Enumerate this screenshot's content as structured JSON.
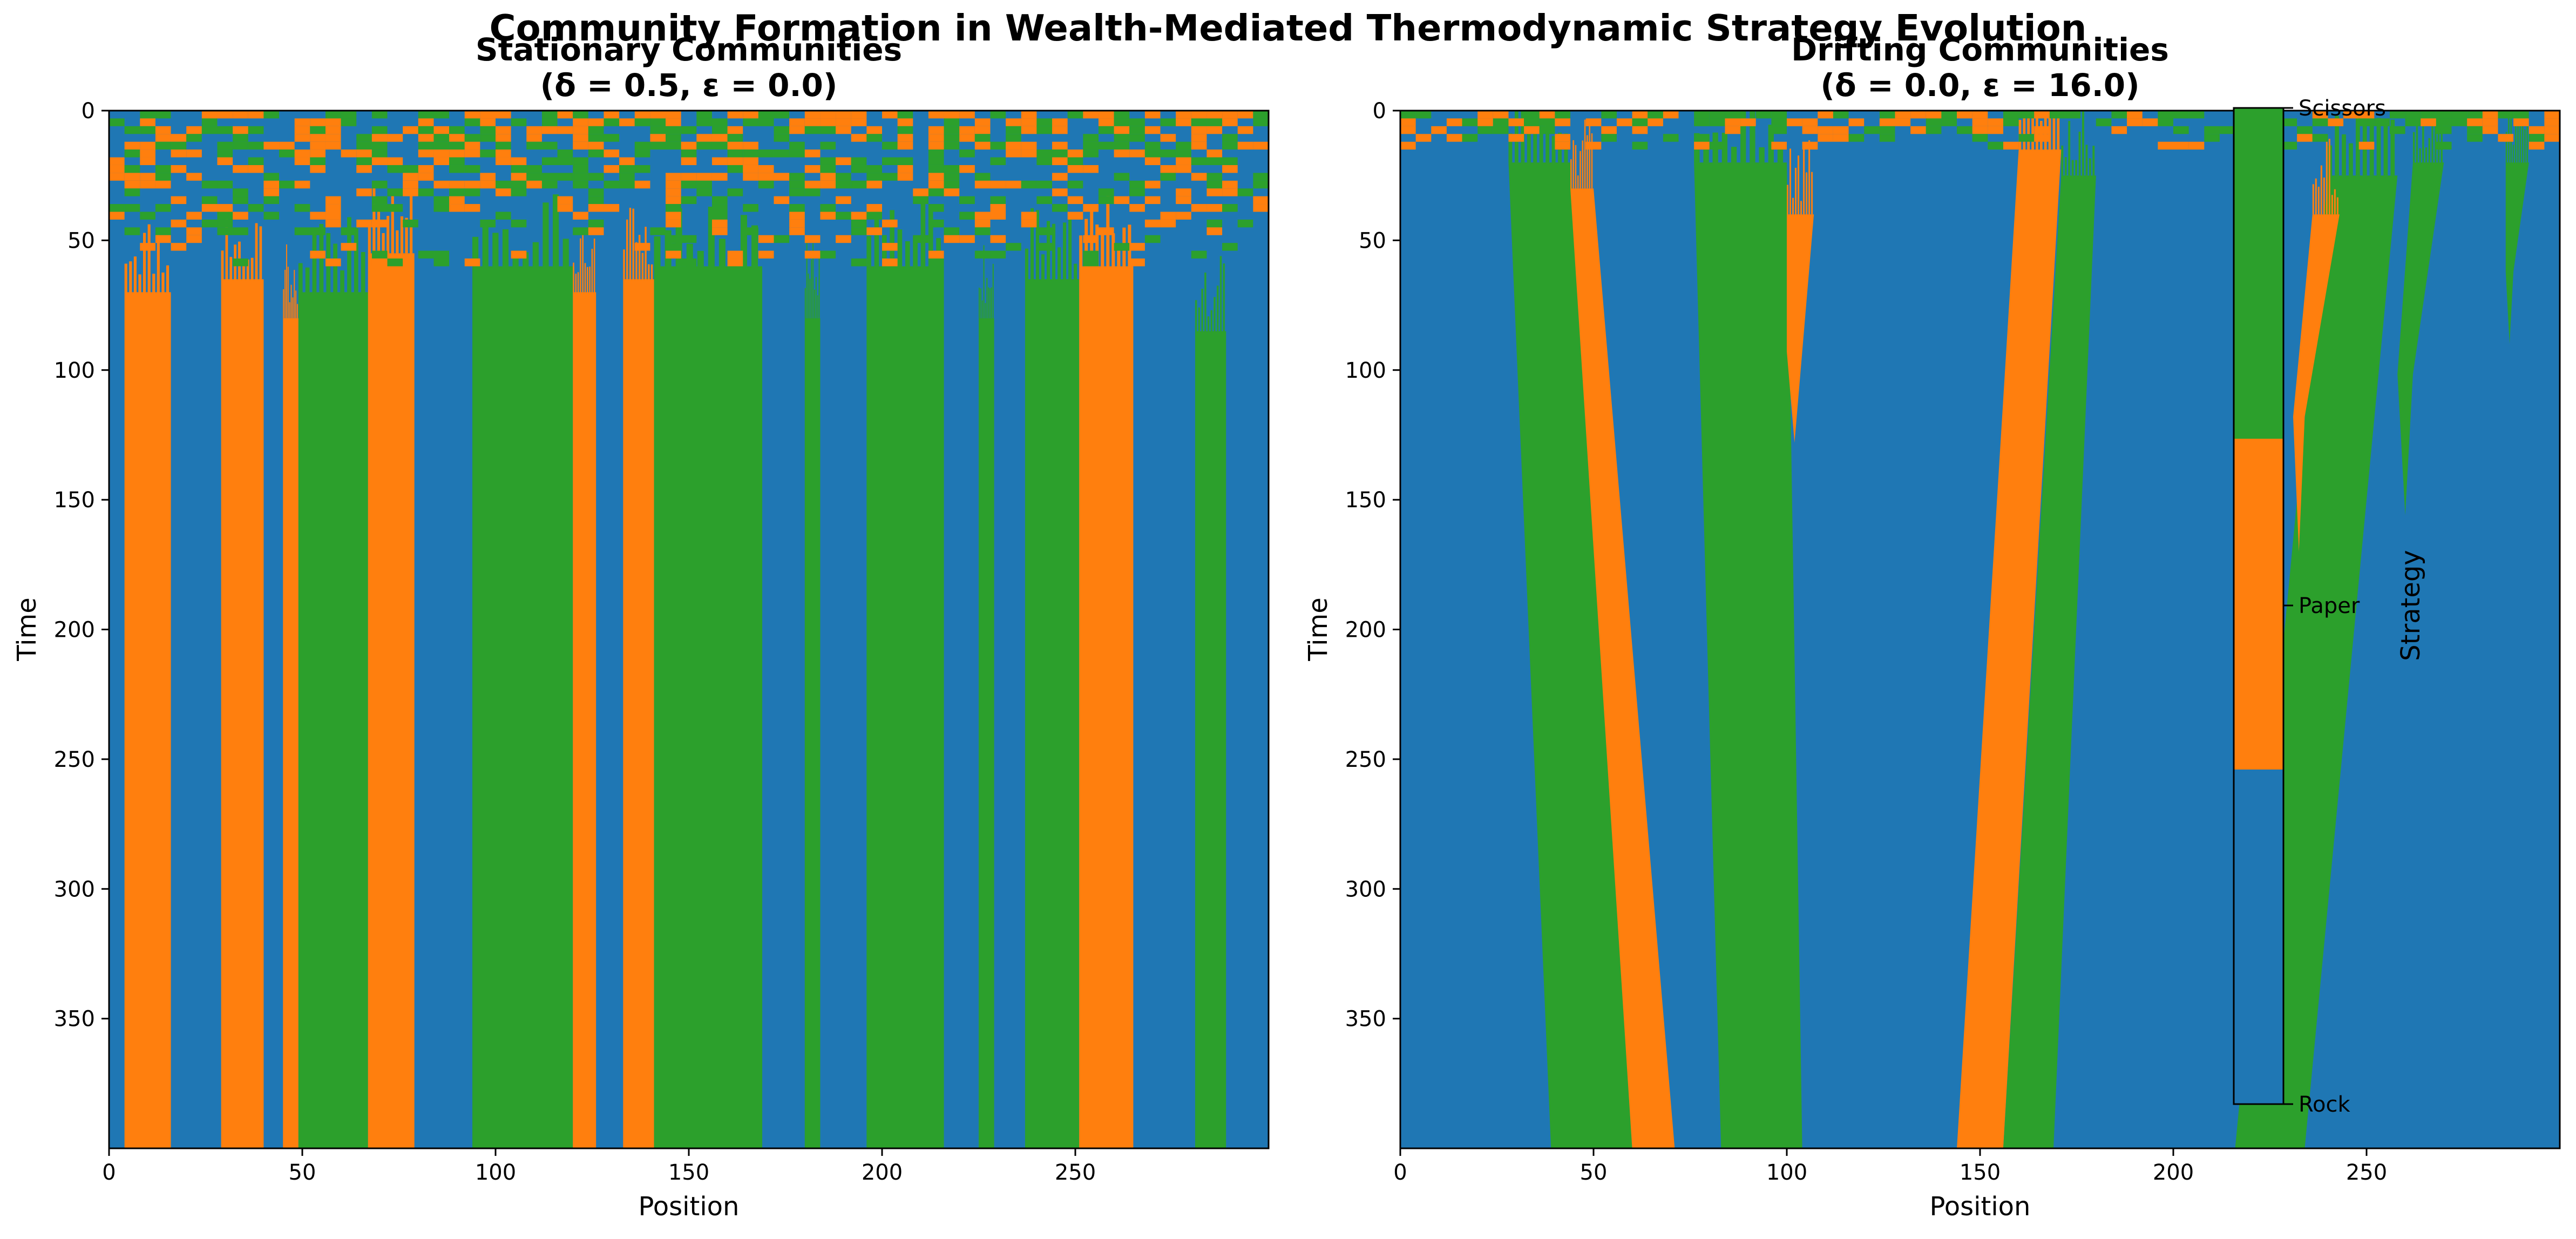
{
  "suptitle": "Community Formation in Wealth-Mediated Thermodynamic Strategy Evolution",
  "colors": {
    "Rock": "#1f77b4",
    "Paper": "#ff7f0e",
    "Scissors": "#2ca02c"
  },
  "chart_data": [
    {
      "type": "heatmap",
      "title_line1": "Stationary Communities",
      "title_line2": "(δ = 0.5, ε = 0.0)",
      "xlabel": "Position",
      "ylabel": "Time",
      "xlim": [
        0,
        300
      ],
      "ylim": [
        400,
        0
      ],
      "xticks": [
        0,
        50,
        100,
        150,
        200,
        250
      ],
      "yticks": [
        0,
        50,
        100,
        150,
        200,
        250,
        300,
        350
      ],
      "noise_until_time": 60,
      "domains": [
        {
          "strategy": "Paper",
          "from": 4,
          "to": 16,
          "start_time": 70
        },
        {
          "strategy": "Paper",
          "from": 29,
          "to": 40,
          "start_time": 65
        },
        {
          "strategy": "Paper",
          "from": 45,
          "to": 49,
          "start_time": 80
        },
        {
          "strategy": "Scissors",
          "from": 49,
          "to": 67,
          "start_time": 70
        },
        {
          "strategy": "Paper",
          "from": 67,
          "to": 79,
          "start_time": 55
        },
        {
          "strategy": "Scissors",
          "from": 94,
          "to": 120,
          "start_time": 60
        },
        {
          "strategy": "Paper",
          "from": 120,
          "to": 126,
          "start_time": 70
        },
        {
          "strategy": "Paper",
          "from": 133,
          "to": 141,
          "start_time": 65
        },
        {
          "strategy": "Scissors",
          "from": 141,
          "to": 169,
          "start_time": 60
        },
        {
          "strategy": "Scissors",
          "from": 180,
          "to": 184,
          "start_time": 80
        },
        {
          "strategy": "Scissors",
          "from": 196,
          "to": 216,
          "start_time": 60
        },
        {
          "strategy": "Scissors",
          "from": 225,
          "to": 229,
          "start_time": 80
        },
        {
          "strategy": "Scissors",
          "from": 237,
          "to": 251,
          "start_time": 65
        },
        {
          "strategy": "Paper",
          "from": 251,
          "to": 265,
          "start_time": 60
        },
        {
          "strategy": "Scissors",
          "from": 281,
          "to": 289,
          "start_time": 85
        }
      ]
    },
    {
      "type": "heatmap",
      "title_line1": "Drifting Communities",
      "title_line2": "(δ = 0.0, ε = 16.0)",
      "xlabel": "Position",
      "ylabel": "Time",
      "xlim": [
        0,
        300
      ],
      "ylim": [
        400,
        0
      ],
      "xticks": [
        0,
        50,
        100,
        150,
        200,
        250
      ],
      "yticks": [
        0,
        50,
        100,
        150,
        200,
        250,
        300,
        350
      ],
      "noise_until_time": 15,
      "domains": [
        {
          "strategy": "Scissors",
          "from": 28,
          "to": 44,
          "to_end_from": 39,
          "to_end_to": 60,
          "start_time": 20
        },
        {
          "strategy": "Paper",
          "from": 44,
          "to": 50,
          "to_end_from": 60,
          "to_end_to": 71,
          "start_time": 30
        },
        {
          "strategy": "Scissors",
          "from": 76,
          "to": 100,
          "to_end_from": 83,
          "to_end_to": 104,
          "start_time": 20
        },
        {
          "strategy": "Paper",
          "from": 100,
          "to": 107,
          "to_end_from": 100,
          "to_end_to": 104,
          "start_time": 40,
          "end_time": 128
        },
        {
          "strategy": "Paper",
          "from": 160,
          "to": 171,
          "to_end_from": 144,
          "to_end_to": 156,
          "start_time": 15
        },
        {
          "strategy": "Scissors",
          "from": 171,
          "to": 180,
          "to_end_from": 156,
          "to_end_to": 169,
          "start_time": 25
        },
        {
          "strategy": "Scissors",
          "from": 240,
          "to": 258,
          "to_end_from": 216,
          "to_end_to": 234,
          "start_time": 25
        },
        {
          "strategy": "Paper",
          "from": 236,
          "to": 243,
          "to_end_from": 231,
          "to_end_to": 234,
          "start_time": 40,
          "end_time": 170
        },
        {
          "strategy": "Scissors",
          "from": 262,
          "to": 270,
          "to_end_from": 258,
          "to_end_to": 262,
          "start_time": 20,
          "end_time": 156
        },
        {
          "strategy": "Scissors",
          "from": 286,
          "to": 292,
          "to_end_from": 286,
          "to_end_to": 288,
          "start_time": 20,
          "end_time": 90
        }
      ]
    }
  ],
  "colorbar": {
    "label": "Strategy",
    "ticks": [
      "Rock",
      "Paper",
      "Scissors"
    ]
  }
}
